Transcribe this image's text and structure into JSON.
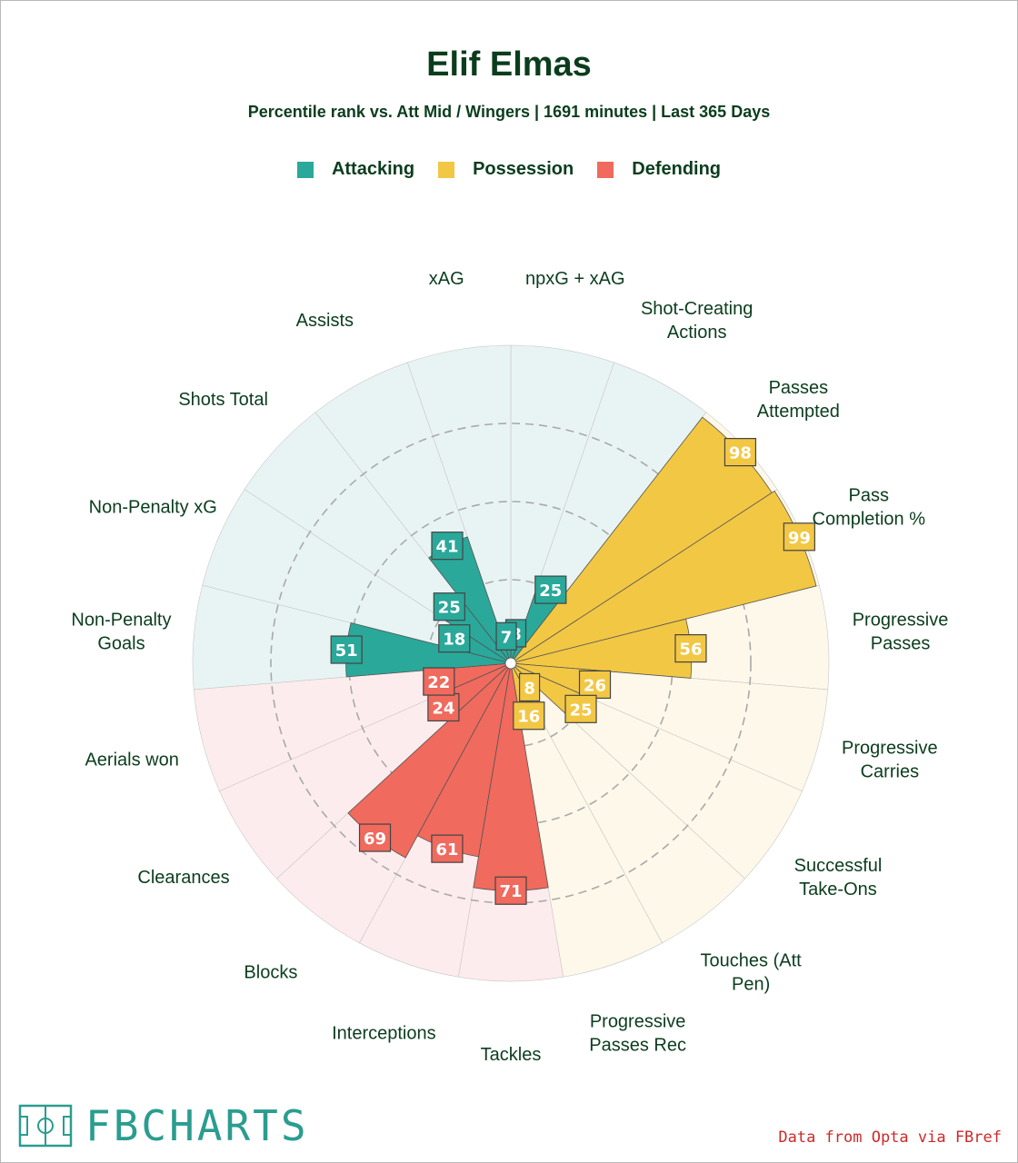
{
  "title": "Elif Elmas",
  "subtitle": "Percentile rank vs. Att Mid / Wingers | 1691 minutes | Last 365 Days",
  "legend": [
    {
      "label": "Attacking",
      "color": "#2aa89a"
    },
    {
      "label": "Possession",
      "color": "#f2c744"
    },
    {
      "label": "Defending",
      "color": "#f06a5e"
    }
  ],
  "colors": {
    "Attacking": {
      "bar": "#2aa89a",
      "bg": "#e8f4f3"
    },
    "Possession": {
      "bar": "#f2c744",
      "bg": "#fdf8e9"
    },
    "Defending": {
      "bar": "#f06a5e",
      "bg": "#fdeced"
    }
  },
  "chart_data": {
    "type": "radial_bar",
    "title": "Elif Elmas",
    "scale": [
      0,
      100
    ],
    "gridlines": [
      25,
      50,
      75
    ],
    "categories": [
      {
        "label": "npxG + xAG",
        "value": 8,
        "group": "Attacking"
      },
      {
        "label": "Shot-Creating Actions",
        "value": 25,
        "group": "Attacking"
      },
      {
        "label": "Passes Attempted",
        "value": 98,
        "group": "Possession"
      },
      {
        "label": "Pass Completion %",
        "value": 99,
        "group": "Possession"
      },
      {
        "label": "Progressive Passes",
        "value": 56,
        "group": "Possession"
      },
      {
        "label": "Progressive Carries",
        "value": 26,
        "group": "Possession"
      },
      {
        "label": "Successful Take-Ons",
        "value": 25,
        "group": "Possession"
      },
      {
        "label": "Touches (Att Pen)",
        "value": 8,
        "group": "Possession"
      },
      {
        "label": "Progressive Passes Rec",
        "value": 16,
        "group": "Possession"
      },
      {
        "label": "Tackles",
        "value": 71,
        "group": "Defending"
      },
      {
        "label": "Interceptions",
        "value": 61,
        "group": "Defending"
      },
      {
        "label": "Blocks",
        "value": 69,
        "group": "Defending"
      },
      {
        "label": "Clearances",
        "value": 24,
        "group": "Defending"
      },
      {
        "label": "Aerials won",
        "value": 22,
        "group": "Defending"
      },
      {
        "label": "Non-Penalty Goals",
        "value": 51,
        "group": "Attacking"
      },
      {
        "label": "Non-Penalty xG",
        "value": 18,
        "group": "Attacking"
      },
      {
        "label": "Shots Total",
        "value": 25,
        "group": "Attacking"
      },
      {
        "label": "Assists",
        "value": 41,
        "group": "Attacking"
      },
      {
        "label": "xAG",
        "value": 7,
        "group": "Attacking"
      }
    ]
  },
  "brand": {
    "name": "FBCHARTS"
  },
  "source": "Data from Opta via FBref"
}
